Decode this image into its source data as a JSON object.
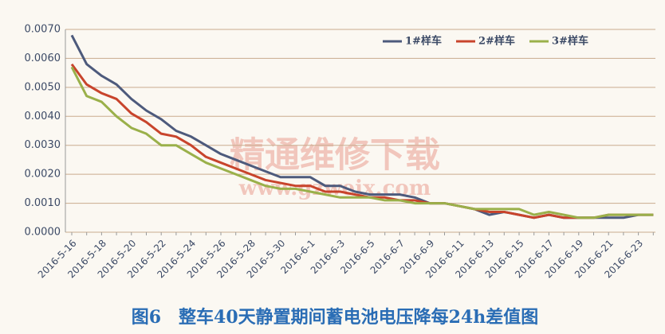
{
  "chart_data": {
    "type": "line",
    "title": "图6　整车40天静置期间蓄电池电压降每24h差值图",
    "watermark": [
      "精通维修下载",
      "www.gzweix.com"
    ],
    "categories": [
      "2016-5-16",
      null,
      "2016-5-18",
      null,
      "2016-5-20",
      null,
      "2016-5-22",
      null,
      "2016-5-24",
      null,
      "2016-5-26",
      null,
      "2016-5-28",
      null,
      "2016-5-30",
      null,
      "2016-6-1",
      null,
      "2016-6-3",
      null,
      "2016-6-5",
      null,
      "2016-6-7",
      null,
      "2016-6-9",
      null,
      "2016-6-11",
      null,
      "2016-6-13",
      null,
      "2016-6-15",
      null,
      "2016-6-17",
      null,
      "2016-6-19",
      null,
      "2016-6-21",
      null,
      "2016-6-23",
      null
    ],
    "series": [
      {
        "name": "1#样车",
        "color": "#4d5a7c",
        "values": [
          0.0068,
          0.0058,
          0.0054,
          0.0051,
          0.0046,
          0.0042,
          0.0039,
          0.0035,
          0.0033,
          0.003,
          0.0027,
          0.0025,
          0.0023,
          0.0021,
          0.0019,
          0.0019,
          0.0019,
          0.0016,
          0.0016,
          0.0014,
          0.0013,
          0.0013,
          0.0013,
          0.0012,
          0.001,
          0.001,
          0.0009,
          0.0008,
          0.0006,
          0.0007,
          0.0006,
          0.0005,
          0.0006,
          0.0005,
          0.0005,
          0.0005,
          0.0005,
          0.0005,
          0.0006,
          0.0006
        ]
      },
      {
        "name": "2#样车",
        "color": "#c8442c",
        "values": [
          0.0058,
          0.0051,
          0.0048,
          0.0046,
          0.0041,
          0.0038,
          0.0034,
          0.0033,
          0.003,
          0.0026,
          0.0024,
          0.0022,
          0.002,
          0.0018,
          0.0017,
          0.0016,
          0.0016,
          0.0014,
          0.0014,
          0.0013,
          0.0012,
          0.0012,
          0.0011,
          0.0011,
          0.001,
          0.001,
          0.0009,
          0.0008,
          0.0007,
          0.0007,
          0.0006,
          0.0005,
          0.0006,
          0.0005,
          0.0005,
          0.0005,
          0.0006,
          0.0006,
          0.0006,
          0.0006
        ]
      },
      {
        "name": "3#样车",
        "color": "#9ab04a",
        "values": [
          0.0057,
          0.0047,
          0.0045,
          0.004,
          0.0036,
          0.0034,
          0.003,
          0.003,
          0.0027,
          0.0024,
          0.0022,
          0.002,
          0.0018,
          0.0016,
          0.0015,
          0.0015,
          0.0014,
          0.0013,
          0.0012,
          0.0012,
          0.0012,
          0.0011,
          0.0011,
          0.001,
          0.001,
          0.001,
          0.0009,
          0.0008,
          0.0008,
          0.0008,
          0.0008,
          0.0006,
          0.0007,
          0.0006,
          0.0005,
          0.0005,
          0.0006,
          0.0006,
          0.0006,
          0.0006
        ]
      }
    ],
    "ylim": [
      0,
      0.007
    ],
    "yticks": [
      {
        "value": 0,
        "label": "0.0000"
      },
      {
        "value": 0.001,
        "label": "0.0010"
      },
      {
        "value": 0.002,
        "label": "0.0020"
      },
      {
        "value": 0.003,
        "label": "0.0030"
      },
      {
        "value": 0.004,
        "label": "0.0040"
      },
      {
        "value": 0.005,
        "label": "0.0050"
      },
      {
        "value": 0.006,
        "label": "0.0060"
      },
      {
        "value": 0.007,
        "label": "0.0070"
      }
    ],
    "grid": true,
    "legend": "upper right"
  }
}
